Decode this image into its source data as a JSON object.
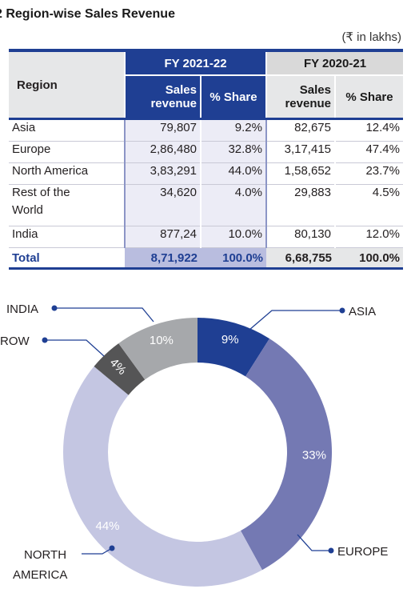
{
  "title": "2 Region-wise Sales Revenue",
  "unit": "(₹ in lakhs)",
  "table": {
    "region_header": "Region",
    "fy1": "FY 2021-22",
    "fy2": "FY 2020-21",
    "sub_sales_1": "Sales",
    "sub_sales_2": "revenue",
    "sub_share": "% Share",
    "rows": [
      {
        "region": "Asia",
        "s1": "79,807",
        "p1": "9.2%",
        "s2": "82,675",
        "p2": "12.4%"
      },
      {
        "region": "Europe",
        "s1": "2,86,480",
        "p1": "32.8%",
        "s2": "3,17,415",
        "p2": "47.4%"
      },
      {
        "region": "North America",
        "s1": "3,83,291",
        "p1": "44.0%",
        "s2": "1,58,652",
        "p2": "23.7%"
      },
      {
        "region": "Rest of the",
        "region2": "World",
        "s1": "34,620",
        "p1": "4.0%",
        "s2": "29,883",
        "p2": "4.5%"
      },
      {
        "region": "India",
        "s1": "877,24",
        "p1": "10.0%",
        "s2": "80,130",
        "p2": "12.0%"
      }
    ],
    "total": {
      "region": "Total",
      "s1": "8,71,922",
      "p1": "100.0%",
      "s2": "6,68,755",
      "p2": "100.0%"
    }
  },
  "chart_data": {
    "type": "pie",
    "categories": [
      "ASIA",
      "EUROPE",
      "NORTH AMERICA",
      "ROW",
      "INDIA"
    ],
    "values": [
      9,
      33,
      44,
      4,
      10
    ],
    "slice_labels": [
      "9%",
      "33%",
      "44%",
      "4%",
      "10%"
    ],
    "colors": [
      "#1f3f93",
      "#7479b3",
      "#c4c6e2",
      "#555556",
      "#a6a8ab"
    ],
    "donut": true
  },
  "callouts": {
    "asia": "ASIA",
    "europe": "EUROPE",
    "north_america_1": "NORTH",
    "north_america_2": "AMERICA",
    "row": "ROW",
    "india": "INDIA"
  }
}
